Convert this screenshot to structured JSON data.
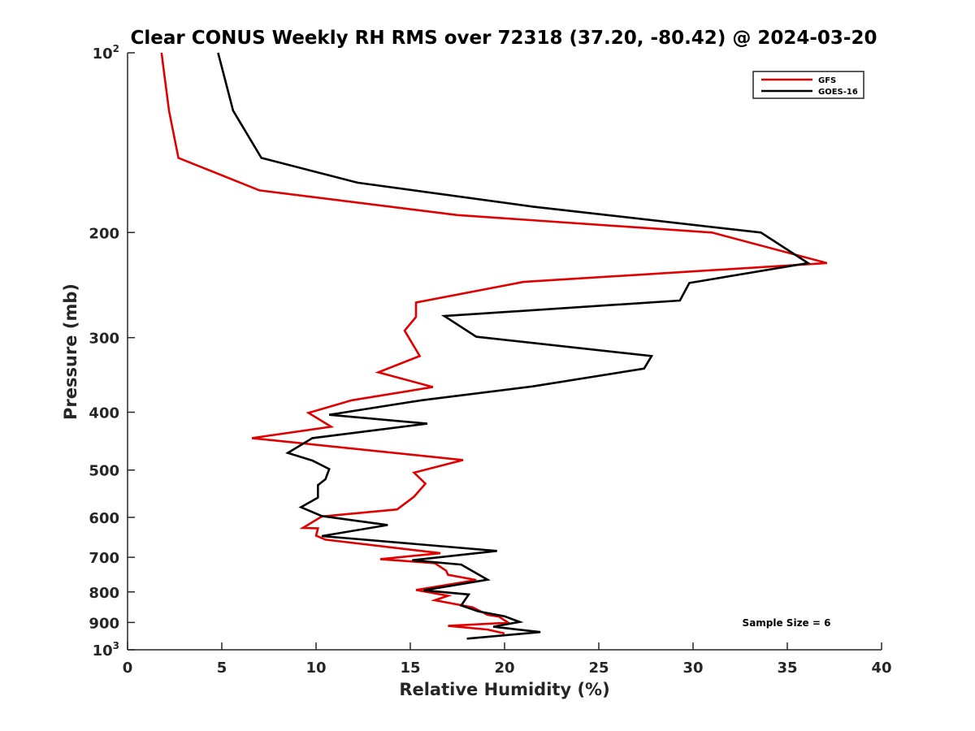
{
  "chart_data": {
    "type": "line",
    "title": "Clear CONUS Weekly RH RMS over 72318 (37.20, -80.42) @ 2024-03-20",
    "xlabel": "Relative Humidity (%)",
    "ylabel": "Pressure (mb)",
    "xlim": [
      0,
      40
    ],
    "ylim": [
      100,
      1000
    ],
    "y_scale": "log",
    "y_reversed": true,
    "x_ticks": [
      0,
      5,
      10,
      15,
      20,
      25,
      30,
      35,
      40
    ],
    "y_ticks": [
      {
        "value": 100,
        "base": "10",
        "sup": "2"
      },
      {
        "value": 200,
        "label": "200"
      },
      {
        "value": 300,
        "label": "300"
      },
      {
        "value": 400,
        "label": "400"
      },
      {
        "value": 500,
        "label": "500"
      },
      {
        "value": 600,
        "label": "600"
      },
      {
        "value": 700,
        "label": "700"
      },
      {
        "value": 800,
        "label": "800"
      },
      {
        "value": 900,
        "label": "900"
      },
      {
        "value": 1000,
        "base": "10",
        "sup": "3"
      }
    ],
    "grid": false,
    "legend_position": "top-right",
    "annotation": "Sample Size = 6",
    "series": [
      {
        "name": "GFS",
        "color": "#e00000",
        "points": [
          [
            1.8,
            100
          ],
          [
            2.2,
            125
          ],
          [
            2.7,
            150
          ],
          [
            7.0,
            170
          ],
          [
            17.5,
            187
          ],
          [
            31.0,
            200
          ],
          [
            37.1,
            225
          ],
          [
            21.0,
            242
          ],
          [
            15.3,
            262
          ],
          [
            15.3,
            277
          ],
          [
            14.7,
            292
          ],
          [
            15.5,
            322
          ],
          [
            13.3,
            343
          ],
          [
            16.2,
            363
          ],
          [
            11.9,
            382
          ],
          [
            9.6,
            401
          ],
          [
            10.8,
            423
          ],
          [
            6.6,
            442
          ],
          [
            17.8,
            481
          ],
          [
            15.2,
            505
          ],
          [
            15.8,
            527
          ],
          [
            15.2,
            554
          ],
          [
            14.3,
            582
          ],
          [
            10.3,
            598
          ],
          [
            9.3,
            625
          ],
          [
            10.1,
            626
          ],
          [
            10.0,
            644
          ],
          [
            10.5,
            654
          ],
          [
            16.6,
            689
          ],
          [
            13.4,
            705
          ],
          [
            16.3,
            716
          ],
          [
            16.9,
            737
          ],
          [
            17.0,
            749
          ],
          [
            18.5,
            764
          ],
          [
            15.3,
            794
          ],
          [
            17.0,
            812
          ],
          [
            16.3,
            826
          ],
          [
            18.3,
            849
          ],
          [
            19.1,
            874
          ],
          [
            19.7,
            880
          ],
          [
            20.2,
            901
          ],
          [
            17.0,
            912
          ],
          [
            19.1,
            925
          ],
          [
            20.0,
            939
          ]
        ]
      },
      {
        "name": "GOES-16",
        "color": "#000000",
        "points": [
          [
            4.8,
            100
          ],
          [
            5.6,
            125
          ],
          [
            7.1,
            150
          ],
          [
            12.2,
            165
          ],
          [
            21.5,
            181
          ],
          [
            33.6,
            200
          ],
          [
            36.1,
            225
          ],
          [
            29.8,
            243
          ],
          [
            29.3,
            260
          ],
          [
            16.8,
            276
          ],
          [
            18.5,
            299
          ],
          [
            27.8,
            322
          ],
          [
            27.4,
            338
          ],
          [
            21.5,
            362
          ],
          [
            15.6,
            382
          ],
          [
            10.7,
            404
          ],
          [
            15.9,
            418
          ],
          [
            9.8,
            442
          ],
          [
            8.5,
            468
          ],
          [
            9.8,
            482
          ],
          [
            10.7,
            498
          ],
          [
            10.5,
            518
          ],
          [
            10.1,
            530
          ],
          [
            10.1,
            556
          ],
          [
            9.2,
            577
          ],
          [
            10.3,
            597
          ],
          [
            13.8,
            618
          ],
          [
            10.3,
            645
          ],
          [
            19.6,
            683
          ],
          [
            15.1,
            708
          ],
          [
            17.7,
            720
          ],
          [
            19.1,
            763
          ],
          [
            15.7,
            795
          ],
          [
            18.1,
            808
          ],
          [
            17.7,
            843
          ],
          [
            18.6,
            862
          ],
          [
            20.0,
            879
          ],
          [
            20.8,
            898
          ],
          [
            19.4,
            915
          ],
          [
            21.9,
            934
          ],
          [
            18.0,
            958
          ]
        ]
      }
    ]
  }
}
